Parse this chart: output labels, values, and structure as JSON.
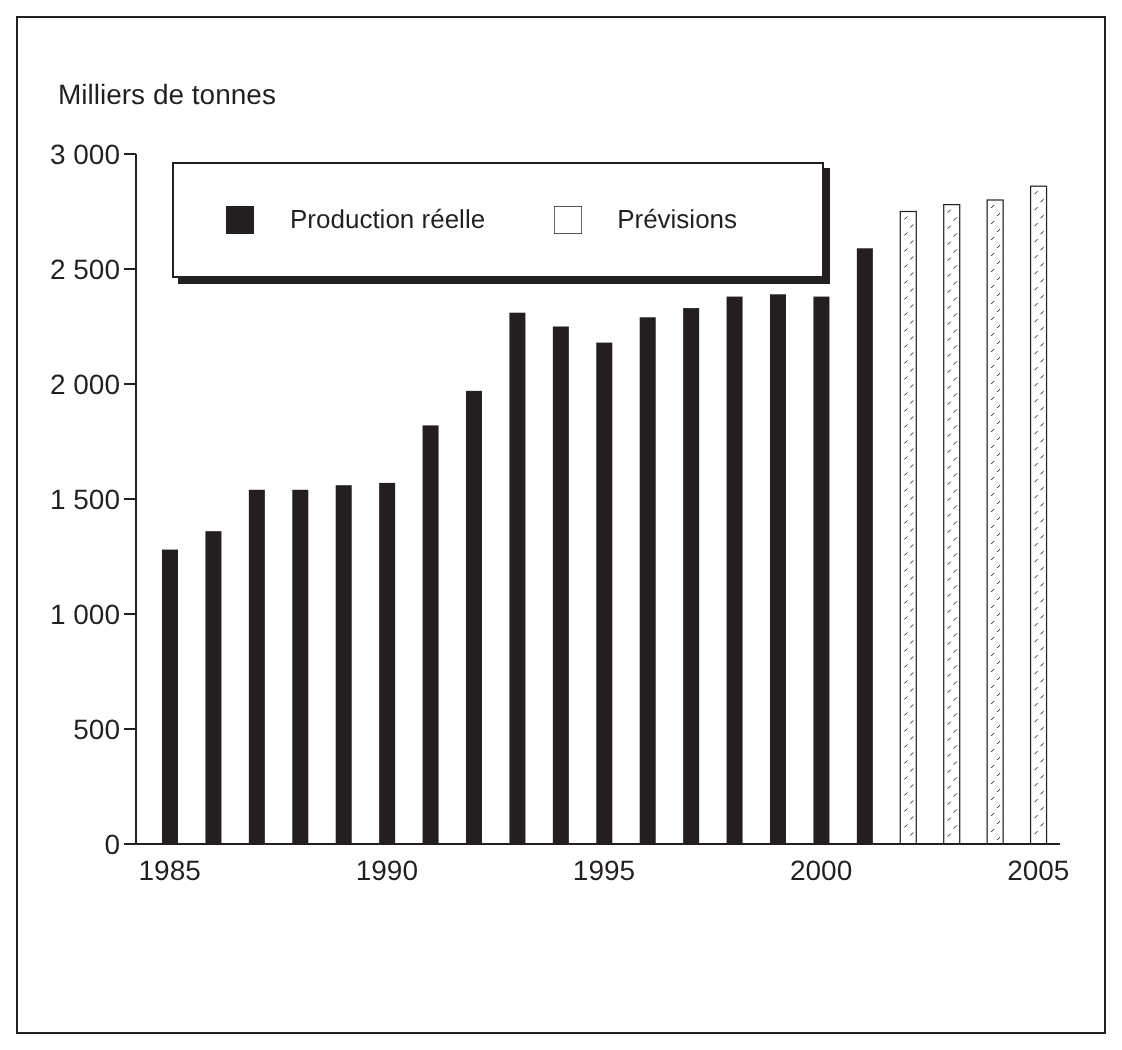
{
  "chart_data": {
    "type": "bar",
    "ylabel": "Milliers de tonnes",
    "categories": [
      "1985",
      null,
      null,
      null,
      null,
      "1990",
      null,
      null,
      null,
      null,
      "1995",
      null,
      null,
      null,
      null,
      "2000",
      null,
      null,
      null,
      null,
      "2005"
    ],
    "series": [
      {
        "name": "Production réelle",
        "color": "#231f20",
        "values": [
          1280,
          1360,
          1540,
          1540,
          1560,
          1570,
          1820,
          1970,
          2310,
          2250,
          2180,
          2290,
          2330,
          2380,
          2390,
          2380,
          2590,
          null,
          null,
          null,
          null
        ]
      },
      {
        "name": "Prévisions",
        "color": "#ffffff",
        "values": [
          null,
          null,
          null,
          null,
          null,
          null,
          null,
          null,
          null,
          null,
          null,
          null,
          null,
          null,
          null,
          null,
          null,
          2750,
          2780,
          2800,
          2860
        ]
      }
    ],
    "ylim": [
      0,
      3000
    ],
    "yticks": [
      0,
      500,
      {
        "value": 1000,
        "label": "1 000"
      },
      {
        "value": 1500,
        "label": "1 500"
      },
      {
        "value": 2000,
        "label": "2 000"
      },
      {
        "value": 2500,
        "label": "2 500"
      },
      {
        "value": 3000,
        "label": "3 000"
      }
    ],
    "grid": false,
    "legend": "top"
  }
}
